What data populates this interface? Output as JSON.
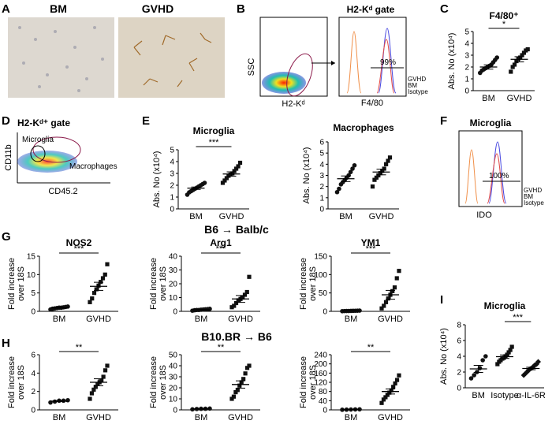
{
  "panels": {
    "A": {
      "letter": "A",
      "labels": [
        "BM",
        "GVHD"
      ]
    },
    "B": {
      "letter": "B",
      "gate_title": "H2-Kᵈ gate",
      "ylabel": "SSC",
      "xlabel": "H2-Kᵈ",
      "hist_xlabel": "F4/80",
      "percent": "99%",
      "legend": [
        "GVHD",
        "BM",
        "Isotype"
      ]
    },
    "C": {
      "letter": "C"
    },
    "D": {
      "letter": "D",
      "gate_title": "H2-Kᵈ⁺ gate",
      "ylabel": "CD11b",
      "xlabel": "CD45.2",
      "gate_microglia": "Microglia",
      "gate_macrophages": "Macrophages"
    },
    "E": {
      "letter": "E"
    },
    "F": {
      "letter": "F",
      "title": "Microglia",
      "xlabel": "IDO",
      "percent": "100%",
      "legend": [
        "GVHD",
        "BM",
        "Isotype"
      ]
    },
    "G": {
      "letter": "G",
      "heading": "B6 → Balb/c"
    },
    "H": {
      "letter": "H",
      "heading": "B10.BR → B6"
    },
    "I": {
      "letter": "I"
    }
  },
  "chart_data": [
    {
      "id": "C",
      "type": "scatter",
      "title": "F4/80⁺",
      "ylabel": "Abs. No (x10⁴)",
      "ylim": [
        0,
        5
      ],
      "yticks": [
        0,
        1,
        2,
        3,
        4,
        5
      ],
      "categories": [
        "BM",
        "GVHD"
      ],
      "significance": "*",
      "series": [
        {
          "values": [
            1.5,
            1.7,
            1.8,
            1.9,
            2.0,
            2.1,
            2.2,
            2.4,
            2.6,
            2.8
          ],
          "mean": 2.0,
          "sem": 0.18
        },
        {
          "values": [
            1.6,
            2.0,
            2.2,
            2.5,
            2.7,
            2.8,
            3.0,
            3.2,
            3.4,
            3.5
          ],
          "mean": 2.65,
          "sem": 0.22
        }
      ]
    },
    {
      "id": "E1",
      "type": "scatter",
      "title": "Microglia",
      "ylabel": "Abs. No (x10⁴)",
      "ylim": [
        0,
        5
      ],
      "yticks": [
        0,
        1,
        2,
        3,
        4,
        5
      ],
      "categories": [
        "BM",
        "GVHD"
      ],
      "significance": "***",
      "series": [
        {
          "values": [
            1.2,
            1.4,
            1.5,
            1.6,
            1.7,
            1.8,
            1.9,
            2.0,
            2.1,
            2.2
          ],
          "mean": 1.75,
          "sem": 0.1
        },
        {
          "values": [
            2.2,
            2.4,
            2.6,
            2.8,
            2.9,
            3.0,
            3.2,
            3.4,
            3.6,
            3.9
          ],
          "mean": 2.95,
          "sem": 0.18
        }
      ]
    },
    {
      "id": "E2",
      "type": "scatter",
      "title": "Macrophages",
      "ylabel": "Abs. No (x10⁴)",
      "ylim": [
        0,
        6
      ],
      "yticks": [
        0,
        1,
        2,
        3,
        4,
        5,
        6
      ],
      "categories": [
        "BM",
        "GVHD"
      ],
      "significance": "",
      "series": [
        {
          "values": [
            1.5,
            1.8,
            2.2,
            2.4,
            2.6,
            2.8,
            3.0,
            3.3,
            3.6,
            3.9
          ],
          "mean": 2.7,
          "sem": 0.25
        },
        {
          "values": [
            2.0,
            2.6,
            2.8,
            3.0,
            3.2,
            3.4,
            3.6,
            4.0,
            4.3,
            4.6
          ],
          "mean": 3.3,
          "sem": 0.25
        }
      ]
    },
    {
      "id": "G1",
      "type": "scatter",
      "title": "NOS2",
      "ylabel": "Fold increase over 18S",
      "ylim": [
        0,
        15
      ],
      "yticks": [
        0,
        5,
        10,
        15
      ],
      "categories": [
        "BM",
        "GVHD"
      ],
      "significance": "***",
      "series": [
        {
          "values": [
            0.5,
            0.7,
            0.8,
            0.9,
            1.0,
            1.0,
            1.1,
            1.2,
            1.3
          ],
          "mean": 0.95,
          "sem": 0.08
        },
        {
          "values": [
            2.5,
            3.5,
            5.0,
            6.0,
            7.0,
            8.0,
            9.0,
            10.0,
            12.8
          ],
          "mean": 6.8,
          "sem": 1.1
        }
      ]
    },
    {
      "id": "G2",
      "type": "scatter",
      "title": "Arg1",
      "ylabel": "Fold increase over 18S",
      "ylim": [
        0,
        40
      ],
      "yticks": [
        0,
        10,
        20,
        30,
        40
      ],
      "categories": [
        "BM",
        "GVHD"
      ],
      "significance": "***",
      "series": [
        {
          "values": [
            0.5,
            0.8,
            1.0,
            1.0,
            1.2,
            1.3,
            1.5,
            1.6,
            1.8
          ],
          "mean": 1.2,
          "sem": 0.1
        },
        {
          "values": [
            3.0,
            4.0,
            6.0,
            8.0,
            9.0,
            10.0,
            12.0,
            14.0,
            25.0
          ],
          "mean": 9.0,
          "sem": 2.5
        }
      ]
    },
    {
      "id": "G3",
      "type": "scatter",
      "title": "YM1",
      "ylabel": "Fold increase over 18S",
      "ylim": [
        0,
        150
      ],
      "yticks": [
        0,
        50,
        100,
        150
      ],
      "categories": [
        "BM",
        "GVHD"
      ],
      "significance": "***",
      "series": [
        {
          "values": [
            0.5,
            0.8,
            1.0,
            1.0,
            1.2,
            1.4,
            1.6,
            1.8,
            2.0
          ],
          "mean": 1.2,
          "sem": 0.2
        },
        {
          "values": [
            8.0,
            15.0,
            25.0,
            35.0,
            45.0,
            55.0,
            65.0,
            90.0,
            110.0
          ],
          "mean": 45.0,
          "sem": 12.0
        }
      ]
    },
    {
      "id": "H1",
      "type": "scatter",
      "title": "",
      "ylabel": "Fold increase over 18S",
      "ylim": [
        0,
        6
      ],
      "yticks": [
        0,
        2,
        4,
        6
      ],
      "categories": [
        "BM",
        "GVHD"
      ],
      "significance": "**",
      "series": [
        {
          "values": [
            0.8,
            0.9,
            1.0,
            1.0,
            1.05
          ],
          "mean": 0.95,
          "sem": 0.05
        },
        {
          "values": [
            1.2,
            1.8,
            2.2,
            2.5,
            2.8,
            3.0,
            3.2,
            3.6,
            4.3,
            4.8
          ],
          "mean": 3.0,
          "sem": 0.38
        }
      ]
    },
    {
      "id": "H2",
      "type": "scatter",
      "title": "",
      "ylabel": "Fold increase over 18S",
      "ylim": [
        0,
        50
      ],
      "yticks": [
        0,
        10,
        20,
        30,
        40,
        50
      ],
      "categories": [
        "BM",
        "GVHD"
      ],
      "significance": "**",
      "series": [
        {
          "values": [
            0.5,
            0.8,
            1.0,
            1.0,
            1.2
          ],
          "mean": 0.9,
          "sem": 0.1
        },
        {
          "values": [
            10.0,
            12.0,
            16.0,
            18.0,
            22.0,
            25.0,
            28.0,
            33.0,
            38.0,
            40.0
          ],
          "mean": 23.0,
          "sem": 3.3
        }
      ]
    },
    {
      "id": "H3",
      "type": "scatter",
      "title": "",
      "ylabel": "Fold increase over 18S",
      "ylim": [
        0,
        240
      ],
      "yticks": [
        0,
        40,
        80,
        120,
        160,
        200,
        240
      ],
      "categories": [
        "BM",
        "GVHD"
      ],
      "significance": "**",
      "series": [
        {
          "values": [
            0.5,
            1.0,
            1.5,
            2.0,
            2.5
          ],
          "mean": 1.5,
          "sem": 0.3
        },
        {
          "values": [
            30.0,
            45.0,
            55.0,
            65.0,
            75.0,
            85.0,
            100.0,
            115.0,
            130.0,
            150.0
          ],
          "mean": 80.0,
          "sem": 11.0
        }
      ]
    },
    {
      "id": "I",
      "type": "scatter",
      "title": "Microglia",
      "ylabel": "Abs. No (x10⁴)",
      "ylim": [
        0,
        8
      ],
      "yticks": [
        0,
        2,
        4,
        6,
        8
      ],
      "categories": [
        "BM",
        "Isotype",
        "α-IL-6R"
      ],
      "significance": "***",
      "series": [
        {
          "values": [
            1.2,
            1.6,
            2.0,
            2.5,
            3.5,
            4.0
          ],
          "mean": 2.4,
          "sem": 0.45
        },
        {
          "values": [
            3.0,
            3.3,
            3.5,
            3.7,
            3.8,
            4.0,
            4.2,
            4.5,
            4.8,
            5.2
          ],
          "mean": 3.95,
          "sem": 0.22
        },
        {
          "values": [
            1.6,
            1.8,
            2.0,
            2.2,
            2.4,
            2.5,
            2.7,
            2.9,
            3.0,
            3.3
          ],
          "mean": 2.45,
          "sem": 0.16
        }
      ]
    }
  ]
}
